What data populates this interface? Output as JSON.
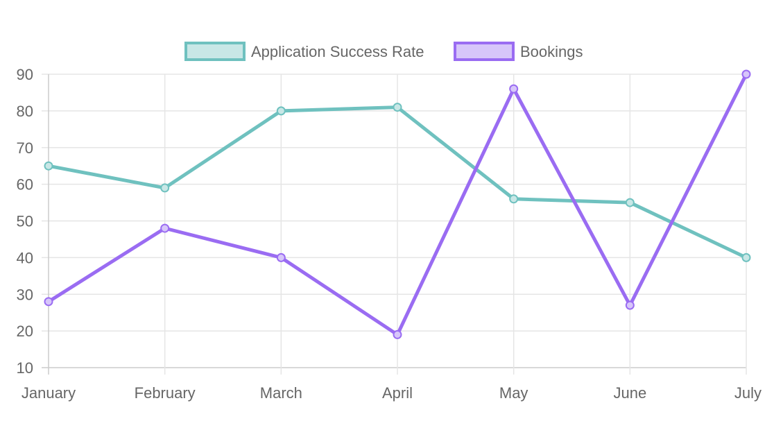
{
  "chart_data": {
    "type": "line",
    "categories": [
      "January",
      "February",
      "March",
      "April",
      "May",
      "June",
      "July"
    ],
    "series": [
      {
        "name": "Application Success Rate",
        "values": [
          65,
          59,
          80,
          81,
          56,
          55,
          40
        ],
        "color": "#6fc1bf",
        "fill": "#c8e7e6"
      },
      {
        "name": "Bookings",
        "values": [
          28,
          48,
          40,
          19,
          86,
          27,
          90
        ],
        "color": "#9a6cf2",
        "fill": "#d7c6fa"
      }
    ],
    "yticks": [
      "10",
      "20",
      "30",
      "40",
      "50",
      "60",
      "70",
      "80",
      "90"
    ],
    "ylim": [
      10,
      90
    ],
    "grid": true,
    "legend": "top-center",
    "title": "",
    "xlabel": "",
    "ylabel": ""
  }
}
